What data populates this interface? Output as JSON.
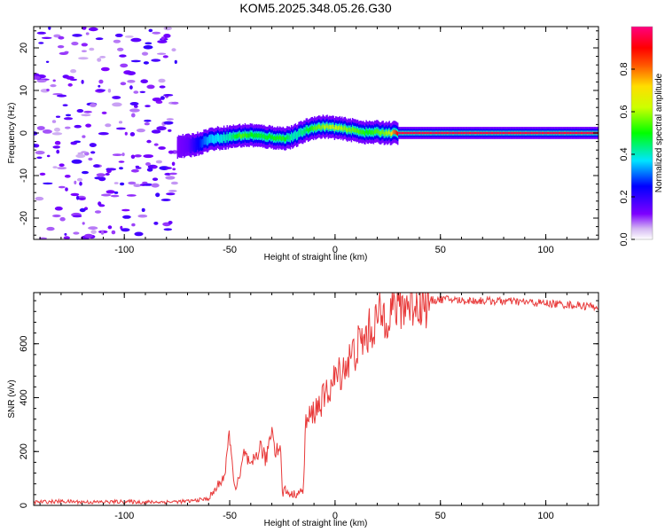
{
  "figure_title": "KOM5.2025.348.05.26.G30",
  "chart_data": [
    {
      "type": "heatmap",
      "title": "KOM5.2025.348.05.26.G30",
      "xlabel": "Height of straight line (km)",
      "ylabel": "Frequency (Hz)",
      "xlim": [
        -143,
        125
      ],
      "ylim": [
        -25,
        25
      ],
      "x_ticks": [
        -100,
        -50,
        0,
        50,
        100
      ],
      "y_ticks": [
        -20,
        -10,
        0,
        10,
        20
      ],
      "x_tick_labels": [
        "-100",
        "-50",
        "0",
        "50",
        "100"
      ],
      "y_tick_labels": [
        "-20",
        "-10",
        "0",
        "10",
        "20"
      ],
      "colorbar": {
        "label": "Normalized spectral amplitude",
        "range": [
          0,
          1
        ],
        "ticks": [
          0.0,
          0.2,
          0.4,
          0.6,
          0.8
        ],
        "tick_labels": [
          "0.0",
          "0.2",
          "0.4",
          "0.6",
          "0.8"
        ],
        "colormap": "rainbow (purple-blue-cyan-green-yellow-red-magenta)"
      },
      "ridge": {
        "description": "Dominant frequency ridge of the signal",
        "x": [
          -75,
          -70,
          -65,
          -60,
          -55,
          -50,
          -45,
          -40,
          -35,
          -30,
          -25,
          -20,
          -15,
          -10,
          -5,
          0,
          5,
          10,
          15,
          20,
          25,
          30,
          60,
          90,
          125
        ],
        "freq": [
          -3.2,
          -3.0,
          -2.5,
          -1.5,
          -1.2,
          -0.9,
          -0.6,
          -0.5,
          -0.8,
          -1.0,
          -1.3,
          -0.9,
          0.4,
          1.3,
          1.5,
          1.2,
          0.9,
          0.5,
          0.1,
          0.2,
          0.0,
          0.0,
          0.0,
          0.0,
          0.0
        ],
        "amplitude": [
          0.12,
          0.15,
          0.25,
          0.35,
          0.38,
          0.42,
          0.55,
          0.5,
          0.48,
          0.5,
          0.52,
          0.4,
          0.45,
          0.55,
          0.6,
          0.62,
          0.58,
          0.55,
          0.5,
          0.55,
          0.6,
          0.95,
          0.95,
          0.95,
          0.95
        ]
      },
      "noise_region": {
        "x_range": [
          -143,
          -75
        ],
        "amplitude_range": [
          0.05,
          0.2
        ]
      }
    },
    {
      "type": "line",
      "xlabel": "Height of straight line (km)",
      "ylabel": "SNR (v/v)",
      "xlim": [
        -143,
        125
      ],
      "ylim": [
        0,
        790
      ],
      "x_ticks": [
        -100,
        -50,
        0,
        50,
        100
      ],
      "y_ticks": [
        0,
        200,
        400,
        600
      ],
      "x_tick_labels": [
        "-100",
        "-50",
        "0",
        "50",
        "100"
      ],
      "y_tick_labels": [
        "0",
        "200",
        "400",
        "600"
      ],
      "line_color": "#e83a3a",
      "series": [
        {
          "name": "SNR",
          "x": [
            -143,
            -130,
            -115,
            -100,
            -90,
            -80,
            -70,
            -65,
            -60,
            -58,
            -55,
            -52,
            -50,
            -49,
            -47,
            -45,
            -43,
            -40,
            -38,
            -35,
            -33,
            -31,
            -30,
            -28,
            -26,
            -25,
            -24,
            -22,
            -20,
            -18,
            -16,
            -15,
            -14,
            -10,
            -5,
            0,
            5,
            10,
            15,
            20,
            25,
            30,
            35,
            40,
            45,
            50,
            55,
            60,
            70,
            80,
            90,
            100,
            110,
            120,
            125
          ],
          "y": [
            12,
            15,
            12,
            14,
            12,
            13,
            15,
            20,
            25,
            45,
            80,
            120,
            280,
            150,
            60,
            110,
            200,
            130,
            180,
            220,
            160,
            250,
            290,
            200,
            230,
            40,
            60,
            45,
            40,
            45,
            50,
            60,
            300,
            350,
            400,
            470,
            520,
            580,
            630,
            690,
            720,
            740,
            750,
            760,
            760,
            765,
            765,
            760,
            760,
            758,
            755,
            750,
            745,
            740,
            738
          ]
        }
      ]
    }
  ]
}
